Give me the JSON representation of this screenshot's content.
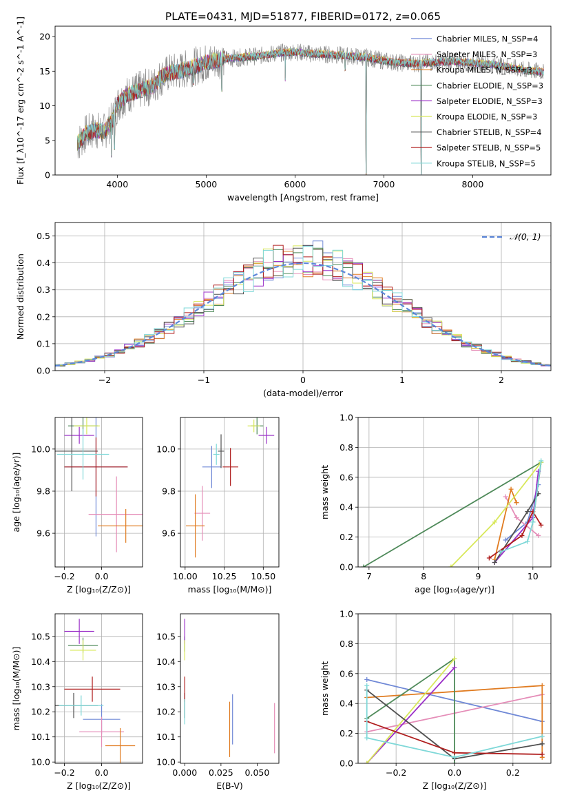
{
  "figure": {
    "title": "PLATE=0431, MJD=51877, FIBERID=0172, z=0.065"
  },
  "chart_data": [
    {
      "id": "spectrum",
      "type": "line",
      "xlabel": "wavelength [Angstrom, rest frame]",
      "ylabel": "Flux [f_λ10^-17 erg cm^-2 s^-1 A^-1]",
      "xlim": [
        3300,
        8880
      ],
      "ylim": [
        0,
        21.5
      ],
      "xticks": [
        4000,
        5000,
        6000,
        7000,
        8000
      ],
      "yticks": [
        0,
        5,
        10,
        15,
        20
      ],
      "grid": false,
      "legend_position": "top-right",
      "series": [
        {
          "name": "Chabrier MILES, N_SSP=4",
          "color": "#6f88d6"
        },
        {
          "name": "Salpeter MILES, N_SSP=3",
          "color": "#e58db8"
        },
        {
          "name": "Kroupa MILES, N_SSP=3",
          "color": "#e07b20"
        },
        {
          "name": "Chabrier ELODIE, N_SSP=3",
          "color": "#4f8a5a"
        },
        {
          "name": "Salpeter ELODIE, N_SSP=3",
          "color": "#9b30c8"
        },
        {
          "name": "Kroupa ELODIE, N_SSP=3",
          "color": "#d8e85a"
        },
        {
          "name": "Chabrier STELIB, N_SSP=4",
          "color": "#505050"
        },
        {
          "name": "Salpeter STELIB, N_SSP=5",
          "color": "#b01e1e"
        },
        {
          "name": "Kroupa STELIB, N_SSP=5",
          "color": "#7fd8d8"
        }
      ],
      "continuum": {
        "x": [
          3550,
          3650,
          3750,
          3850,
          3950,
          4000,
          4100,
          4200,
          4300,
          4400,
          4500,
          4600,
          4700,
          4800,
          5000,
          5200,
          5400,
          5600,
          5800,
          6000,
          6200,
          6400,
          6600,
          6800,
          7000,
          7200,
          7400,
          7600,
          7800,
          8000,
          8200,
          8400,
          8600,
          8800
        ],
        "y": [
          4.5,
          6.0,
          6.5,
          6.2,
          8.0,
          10.2,
          11.5,
          12.0,
          12.5,
          12.8,
          14.2,
          14.8,
          15.0,
          15.4,
          16.2,
          16.8,
          17.0,
          17.2,
          17.6,
          17.8,
          17.5,
          17.4,
          17.2,
          17.0,
          16.5,
          16.2,
          16.1,
          16.3,
          16.4,
          16.2,
          16.0,
          15.6,
          15.1,
          14.9
        ]
      },
      "absorption_features": [
        {
          "x": 3934,
          "y": 2.5
        },
        {
          "x": 3968,
          "y": 3.5
        },
        {
          "x": 4861,
          "y": 13.0
        },
        {
          "x": 5175,
          "y": 12.0
        },
        {
          "x": 5890,
          "y": 13.5
        },
        {
          "x": 6563,
          "y": 15.0
        },
        {
          "x": 6800,
          "y": 0.0
        },
        {
          "x": 7420,
          "y": 0.0
        }
      ]
    },
    {
      "id": "residuals",
      "type": "histogram",
      "xlabel": "(data-model)/error",
      "ylabel": "Normed distribution",
      "xlim": [
        -2.5,
        2.5
      ],
      "ylim": [
        0,
        0.55
      ],
      "xticks": [
        -2,
        -1,
        0,
        1,
        2
      ],
      "yticks": [
        0.0,
        0.1,
        0.2,
        0.3,
        0.4,
        0.5
      ],
      "grid": true,
      "bin_width": 0.1,
      "legend_position": "top-right",
      "gaussian": {
        "label": "𝒩(0, 1)",
        "mean": 0,
        "sigma": 1,
        "color": "#5b86d9"
      }
    },
    {
      "id": "age-vs-Z",
      "type": "scatter",
      "xlabel": "Z [log₁₀(Z/Z⊙)]",
      "ylabel": "age  [log₁₀(age/yr)]",
      "xlim": [
        -0.25,
        0.22
      ],
      "ylim": [
        9.44,
        10.15
      ],
      "xticks": [
        -0.2,
        0.0
      ],
      "yticks": [
        9.6,
        9.8,
        10.0
      ],
      "grid": true,
      "points": [
        {
          "model": "Chabrier MILES",
          "x": -0.03,
          "xerr": 0.17,
          "y": 9.915,
          "yerr": 0.33
        },
        {
          "model": "Salpeter MILES",
          "x": 0.08,
          "xerr": 0.15,
          "y": 9.69,
          "yerr": 0.18
        },
        {
          "model": "Kroupa MILES",
          "x": 0.13,
          "xerr": 0.15,
          "y": 9.635,
          "yerr": 0.08
        },
        {
          "model": "Chabrier ELODIE",
          "x": -0.1,
          "xerr": 0.08,
          "y": 10.11,
          "yerr": 0.04
        },
        {
          "model": "Salpeter ELODIE",
          "x": -0.12,
          "xerr": 0.08,
          "y": 10.065,
          "yerr": 0.04
        },
        {
          "model": "Kroupa ELODIE",
          "x": -0.08,
          "xerr": 0.07,
          "y": 10.11,
          "yerr": 0.04
        },
        {
          "model": "Chabrier STELIB",
          "x": -0.16,
          "xerr": 0.14,
          "y": 9.99,
          "yerr": 0.19
        },
        {
          "model": "Salpeter STELIB",
          "x": -0.03,
          "xerr": 0.17,
          "y": 9.915,
          "yerr": 0.14
        },
        {
          "model": "Kroupa STELIB",
          "x": -0.1,
          "xerr": 0.14,
          "y": 9.975,
          "yerr": 0.12
        }
      ]
    },
    {
      "id": "age-vs-mass",
      "type": "scatter",
      "xlabel": "mass [log₁₀(M/M⊙)]",
      "ylabel": "",
      "xlim": [
        9.97,
        10.6
      ],
      "ylim": [
        9.44,
        10.15
      ],
      "xticks": [
        10.0,
        10.25,
        10.5
      ],
      "yticks": [
        9.6,
        9.8,
        10.0
      ],
      "grid": true,
      "points": [
        {
          "model": "Chabrier MILES",
          "x": 10.17,
          "xerr": 0.06,
          "y": 9.915,
          "yerr": 0.1
        },
        {
          "model": "Salpeter MILES",
          "x": 10.11,
          "xerr": 0.05,
          "y": 9.695,
          "yerr": 0.13
        },
        {
          "model": "Kroupa MILES",
          "x": 10.065,
          "xerr": 0.06,
          "y": 9.635,
          "yerr": 0.15
        },
        {
          "model": "Chabrier ELODIE",
          "x": 10.46,
          "xerr": 0.04,
          "y": 10.11,
          "yerr": 0.04
        },
        {
          "model": "Salpeter ELODIE",
          "x": 10.52,
          "xerr": 0.05,
          "y": 10.065,
          "yerr": 0.04
        },
        {
          "model": "Kroupa ELODIE",
          "x": 10.44,
          "xerr": 0.04,
          "y": 10.11,
          "yerr": 0.03
        },
        {
          "model": "Chabrier STELIB",
          "x": 10.23,
          "xerr": 0.02,
          "y": 9.99,
          "yerr": 0.08
        },
        {
          "model": "Salpeter STELIB",
          "x": 10.29,
          "xerr": 0.05,
          "y": 9.915,
          "yerr": 0.09
        },
        {
          "model": "Kroupa STELIB",
          "x": 10.2,
          "xerr": 0.02,
          "y": 9.975,
          "yerr": 0.05
        }
      ]
    },
    {
      "id": "mass-weight-vs-age",
      "type": "line",
      "xlabel": "age  [log₁₀(age/yr)]",
      "ylabel": "mass weight",
      "xlim": [
        6.8,
        10.33
      ],
      "ylim": [
        0,
        1.0
      ],
      "xticks": [
        7,
        8,
        9,
        10
      ],
      "yticks": [
        0.0,
        0.2,
        0.4,
        0.6,
        0.8,
        1.0
      ],
      "grid": true,
      "series": [
        {
          "model": "Chabrier MILES",
          "x": [
            9.5,
            9.9,
            10.1
          ],
          "y": [
            0.18,
            0.3,
            0.55
          ]
        },
        {
          "model": "Salpeter MILES",
          "x": [
            9.5,
            9.7,
            10.1
          ],
          "y": [
            0.47,
            0.33,
            0.21
          ]
        },
        {
          "model": "Kroupa MILES",
          "x": [
            9.3,
            9.6,
            9.7
          ],
          "y": [
            0.05,
            0.52,
            0.43
          ]
        },
        {
          "model": "Chabrier ELODIE",
          "x": [
            6.9,
            10.15,
            10.0
          ],
          "y": [
            0.0,
            0.7,
            0.3
          ]
        },
        {
          "model": "Salpeter ELODIE",
          "x": [
            9.3,
            10.0,
            10.1
          ],
          "y": [
            0.03,
            0.33,
            0.64
          ]
        },
        {
          "model": "Kroupa ELODIE",
          "x": [
            8.5,
            9.3,
            10.15
          ],
          "y": [
            0.0,
            0.3,
            0.7
          ]
        },
        {
          "model": "Chabrier STELIB",
          "x": [
            9.3,
            9.9,
            10.1
          ],
          "y": [
            0.03,
            0.37,
            0.49
          ]
        },
        {
          "model": "Salpeter STELIB",
          "x": [
            9.2,
            9.8,
            10.0,
            10.15
          ],
          "y": [
            0.06,
            0.21,
            0.37,
            0.28
          ]
        },
        {
          "model": "Kroupa STELIB",
          "x": [
            9.4,
            9.9,
            10.0,
            10.15
          ],
          "y": [
            0.1,
            0.17,
            0.3,
            0.71
          ]
        }
      ]
    },
    {
      "id": "mass-vs-Z",
      "type": "scatter",
      "xlabel": "Z [log₁₀(Z/Z⊙)]",
      "ylabel": "mass [log₁₀(M/M⊙)]",
      "xlim": [
        -0.25,
        0.22
      ],
      "ylim": [
        9.995,
        10.59
      ],
      "xticks": [
        -0.2,
        0.0
      ],
      "yticks": [
        10.0,
        10.1,
        10.2,
        10.3,
        10.4,
        10.5
      ],
      "grid": true,
      "points": [
        {
          "model": "Chabrier MILES",
          "x": 0.0,
          "xerr": 0.1,
          "y": 10.17,
          "yerr": 0.06
        },
        {
          "model": "Salpeter MILES",
          "x": 0.0,
          "xerr": 0.12,
          "y": 10.12,
          "yerr": 0.06
        },
        {
          "model": "Kroupa MILES",
          "x": 0.1,
          "xerr": 0.08,
          "y": 10.065,
          "yerr": 0.07
        },
        {
          "model": "Chabrier ELODIE",
          "x": -0.1,
          "xerr": 0.08,
          "y": 10.465,
          "yerr": 0.03
        },
        {
          "model": "Salpeter ELODIE",
          "x": -0.12,
          "xerr": 0.08,
          "y": 10.52,
          "yerr": 0.05
        },
        {
          "model": "Kroupa ELODIE",
          "x": -0.1,
          "xerr": 0.07,
          "y": 10.445,
          "yerr": 0.04
        },
        {
          "model": "Chabrier STELIB",
          "x": -0.15,
          "xerr": 0.13,
          "y": 10.225,
          "yerr": 0.05
        },
        {
          "model": "Salpeter STELIB",
          "x": -0.05,
          "xerr": 0.15,
          "y": 10.29,
          "yerr": 0.05
        },
        {
          "model": "Kroupa STELIB",
          "x": -0.11,
          "xerr": 0.12,
          "y": 10.225,
          "yerr": 0.04
        }
      ]
    },
    {
      "id": "mass-vs-ebv",
      "type": "scatter",
      "xlabel": "E(B-V)",
      "ylabel": "",
      "xlim": [
        -0.003,
        0.065
      ],
      "ylim": [
        9.995,
        10.59
      ],
      "xticks": [
        0.0,
        0.025,
        0.05
      ],
      "yticks": [
        10.0,
        10.1,
        10.2,
        10.3,
        10.4,
        10.5
      ],
      "grid": false,
      "points": [
        {
          "model": "Chabrier MILES",
          "x": 0.033,
          "y": 10.17,
          "yerr": 0.1
        },
        {
          "model": "Salpeter MILES",
          "x": 0.062,
          "y": 10.135,
          "yerr": 0.1
        },
        {
          "model": "Kroupa MILES",
          "x": 0.031,
          "y": 10.13,
          "yerr": 0.11
        },
        {
          "model": "Chabrier ELODIE",
          "x": 0.0,
          "y": 10.47,
          "yerr": 0.03
        },
        {
          "model": "Salpeter ELODIE",
          "x": 0.0,
          "y": 10.52,
          "yerr": 0.05
        },
        {
          "model": "Kroupa ELODIE",
          "x": 0.0,
          "y": 10.445,
          "yerr": 0.04
        },
        {
          "model": "Chabrier STELIB",
          "x": 0.0,
          "y": 10.225,
          "yerr": 0.05
        },
        {
          "model": "Salpeter STELIB",
          "x": 0.0,
          "y": 10.29,
          "yerr": 0.05
        },
        {
          "model": "Kroupa STELIB",
          "x": 0.0,
          "y": 10.2,
          "yerr": 0.05
        }
      ]
    },
    {
      "id": "mass-weight-vs-Z",
      "type": "line",
      "xlabel": "Z [log₁₀(Z/Z⊙)]",
      "ylabel": "mass weight",
      "xlim": [
        -0.33,
        0.33
      ],
      "ylim": [
        0,
        1.0
      ],
      "xticks": [
        -0.2,
        0.0,
        0.2
      ],
      "yticks": [
        0.0,
        0.2,
        0.4,
        0.6,
        0.8,
        1.0
      ],
      "grid": true,
      "series": [
        {
          "model": "Chabrier MILES",
          "x": [
            -0.3,
            0.3
          ],
          "y": [
            0.56,
            0.28
          ]
        },
        {
          "model": "Salpeter MILES",
          "x": [
            -0.3,
            0.3
          ],
          "y": [
            0.21,
            0.46
          ]
        },
        {
          "model": "Kroupa MILES",
          "x": [
            -0.3,
            0.3,
            0.3
          ],
          "y": [
            0.44,
            0.52,
            0.04
          ]
        },
        {
          "model": "Chabrier ELODIE",
          "x": [
            -0.3,
            0.0,
            0.0
          ],
          "y": [
            0.3,
            0.7,
            0.0
          ]
        },
        {
          "model": "Salpeter ELODIE",
          "x": [
            -0.3,
            0.0
          ],
          "y": [
            0.0,
            0.64
          ]
        },
        {
          "model": "Kroupa ELODIE",
          "x": [
            -0.3,
            0.0
          ],
          "y": [
            0.0,
            0.7
          ]
        },
        {
          "model": "Chabrier STELIB",
          "x": [
            -0.3,
            0.0,
            0.3
          ],
          "y": [
            0.49,
            0.03,
            0.13
          ]
        },
        {
          "model": "Salpeter STELIB",
          "x": [
            -0.3,
            0.0,
            0.3
          ],
          "y": [
            0.28,
            0.07,
            0.06
          ]
        },
        {
          "model": "Kroupa STELIB",
          "x": [
            -0.3,
            -0.3,
            0.0,
            0.3
          ],
          "y": [
            0.52,
            0.17,
            0.04,
            0.18
          ]
        }
      ]
    }
  ]
}
